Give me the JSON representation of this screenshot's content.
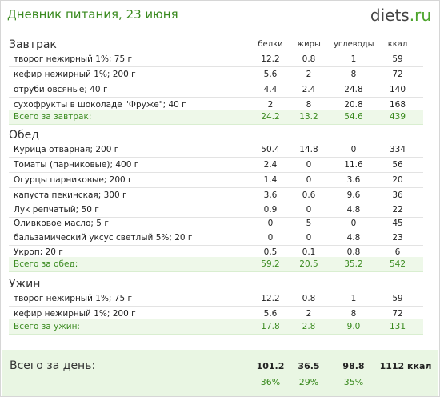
{
  "header": {
    "title": "Дневник питания, 23 июня",
    "logo_main": "diets",
    "logo_tld": ".ru"
  },
  "columns": {
    "protein": "белки",
    "fat": "жиры",
    "carbs": "углеводы",
    "kcal": "ккал"
  },
  "meals": [
    {
      "title": "Завтрак",
      "items": [
        {
          "name": "творог нежирный 1%; 75 г",
          "protein": "12.2",
          "fat": "0.8",
          "carbs": "1",
          "kcal": "59"
        },
        {
          "name": "кефир нежирный 1%; 200 г",
          "protein": "5.6",
          "fat": "2",
          "carbs": "8",
          "kcal": "72"
        },
        {
          "name": "отруби овсяные; 40 г",
          "protein": "4.4",
          "fat": "2.4",
          "carbs": "24.8",
          "kcal": "140"
        },
        {
          "name": "сухофрукты в шоколаде \"Фруже\"; 40 г",
          "protein": "2",
          "fat": "8",
          "carbs": "20.8",
          "kcal": "168"
        }
      ],
      "total": {
        "name": "Всего за завтрак:",
        "protein": "24.2",
        "fat": "13.2",
        "carbs": "54.6",
        "kcal": "439"
      }
    },
    {
      "title": "Обед",
      "items": [
        {
          "name": "Курица отварная; 200 г",
          "protein": "50.4",
          "fat": "14.8",
          "carbs": "0",
          "kcal": "334"
        },
        {
          "name": "Томаты (парниковые); 400 г",
          "protein": "2.4",
          "fat": "0",
          "carbs": "11.6",
          "kcal": "56"
        },
        {
          "name": "Огурцы парниковые; 200 г",
          "protein": "1.4",
          "fat": "0",
          "carbs": "3.6",
          "kcal": "20"
        },
        {
          "name": "капуста пекинская; 300 г",
          "protein": "3.6",
          "fat": "0.6",
          "carbs": "9.6",
          "kcal": "36"
        },
        {
          "name": "Лук репчатый; 50 г",
          "protein": "0.9",
          "fat": "0",
          "carbs": "4.8",
          "kcal": "22"
        },
        {
          "name": "Оливковое масло; 5 г",
          "protein": "0",
          "fat": "5",
          "carbs": "0",
          "kcal": "45"
        },
        {
          "name": "бальзамический уксус светлый 5%; 20 г",
          "protein": "0",
          "fat": "0",
          "carbs": "4.8",
          "kcal": "23"
        },
        {
          "name": "Укроп; 20 г",
          "protein": "0.5",
          "fat": "0.1",
          "carbs": "0.8",
          "kcal": "6"
        }
      ],
      "total": {
        "name": "Всего за обед:",
        "protein": "59.2",
        "fat": "20.5",
        "carbs": "35.2",
        "kcal": "542"
      }
    },
    {
      "title": "Ужин",
      "items": [
        {
          "name": "творог нежирный 1%; 75 г",
          "protein": "12.2",
          "fat": "0.8",
          "carbs": "1",
          "kcal": "59"
        },
        {
          "name": "кефир нежирный 1%; 200 г",
          "protein": "5.6",
          "fat": "2",
          "carbs": "8",
          "kcal": "72"
        }
      ],
      "total": {
        "name": "Всего за ужин:",
        "protein": "17.8",
        "fat": "2.8",
        "carbs": "9.0",
        "kcal": "131"
      }
    }
  ],
  "day_total": {
    "label": "Всего за день:",
    "protein": "101.2",
    "fat": "36.5",
    "carbs": "98.8",
    "kcal": "1112 ккал",
    "protein_pct": "36%",
    "fat_pct": "29%",
    "carbs_pct": "35%"
  }
}
